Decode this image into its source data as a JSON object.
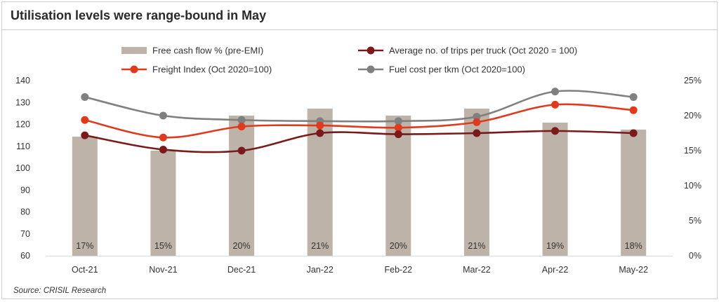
{
  "title": "Utilisation levels were range-bound in May",
  "source": "Source:  CRISIL Research",
  "colors": {
    "bar": "#bdb3a8",
    "trips": "#7a1a1a",
    "freight": "#e03a1c",
    "fuel": "#808080",
    "axis": "#d9d9d9",
    "text": "#333333"
  },
  "chart_data": {
    "type": "bar+line",
    "categories": [
      "Oct-21",
      "Nov-21",
      "Dec-21",
      "Jan-22",
      "Feb-22",
      "Mar-22",
      "Apr-22",
      "May-22"
    ],
    "bar_series": {
      "name": "Free cash flow % (pre-EMI)",
      "values": [
        17,
        15,
        20,
        21,
        20,
        21,
        19,
        18
      ],
      "labels": [
        "17%",
        "15%",
        "20%",
        "21%",
        "20%",
        "21%",
        "19%",
        "18%"
      ],
      "axis": "right"
    },
    "line_series": [
      {
        "name": "Average no. of trips per truck (Oct 2020 = 100)",
        "key": "trips",
        "values": [
          115,
          108.5,
          108,
          116,
          115.5,
          116,
          117,
          116
        ]
      },
      {
        "name": "Freight Index (Oct 2020=100)",
        "key": "freight",
        "values": [
          122,
          114,
          119,
          119.5,
          118.5,
          121,
          129,
          126.5
        ]
      },
      {
        "name": "Fuel cost per tkm (Oct 2020=100)",
        "key": "fuel",
        "values": [
          132.5,
          124,
          122,
          121.5,
          121.5,
          123.5,
          135,
          132.5
        ]
      }
    ],
    "y_left": {
      "min": 60,
      "max": 140,
      "ticks": [
        "60",
        "70",
        "80",
        "90",
        "100",
        "110",
        "120",
        "130",
        "140"
      ]
    },
    "y_right": {
      "min": 0,
      "max": 25,
      "ticks": [
        "0%",
        "5%",
        "10%",
        "15%",
        "20%",
        "25%"
      ]
    },
    "grid": false,
    "legend_position": "top"
  }
}
